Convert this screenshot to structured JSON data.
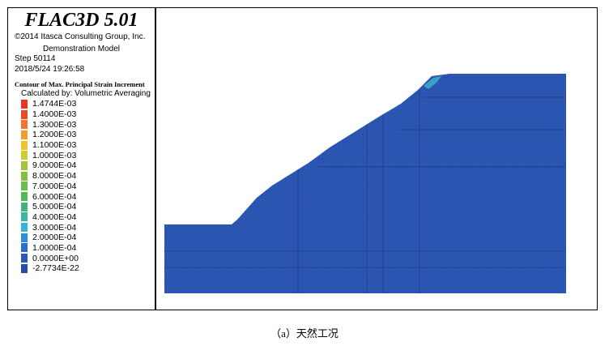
{
  "legend": {
    "title": "FLAC3D 5.01",
    "copyright": "©2014 Itasca Consulting Group, Inc.",
    "model": "Demonstration Model",
    "step": "Step 50114",
    "datetime": "2018/5/24 19:26:58",
    "contour_title": "Contour of Max. Principal Strain Increment",
    "calc_method": "Calculated by: Volumetric Averaging",
    "scale": [
      {
        "label": "1.4744E-03",
        "color": "#e8342b"
      },
      {
        "label": "1.4000E-03",
        "color": "#ee4a28"
      },
      {
        "label": "1.3000E-03",
        "color": "#f3732a"
      },
      {
        "label": "1.2000E-03",
        "color": "#f59a2f"
      },
      {
        "label": "1.1000E-03",
        "color": "#f0c22f"
      },
      {
        "label": "1.0000E-03",
        "color": "#cfcb32"
      },
      {
        "label": "9.0000E-04",
        "color": "#a6c43a"
      },
      {
        "label": "8.0000E-04",
        "color": "#86c040"
      },
      {
        "label": "7.0000E-04",
        "color": "#6dbb4b"
      },
      {
        "label": "6.0000E-04",
        "color": "#56b65a"
      },
      {
        "label": "5.0000E-04",
        "color": "#45b278"
      },
      {
        "label": "4.0000E-04",
        "color": "#3fb4a2"
      },
      {
        "label": "3.0000E-04",
        "color": "#33b6d6"
      },
      {
        "label": "2.0000E-04",
        "color": "#2c8fd9"
      },
      {
        "label": "1.0000E-04",
        "color": "#2b6ccc"
      },
      {
        "label": "0.0000E+00",
        "color": "#2b58b8"
      },
      {
        "label": "-2.7734E-22",
        "color": "#2a4aa8"
      }
    ]
  },
  "model_colors": {
    "body": "#2c56b4",
    "grid": "#1f3f86",
    "highlight": "#3fb4c8"
  },
  "caption": "（a）天然工况"
}
